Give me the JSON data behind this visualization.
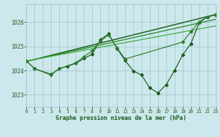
{
  "title": "Graphe pression niveau de la mer (hPa)",
  "bg_color": "#cde8ec",
  "grid_color": "#9ec8cc",
  "line_color_dark": "#1a5c1a",
  "xlim": [
    0,
    23
  ],
  "ylim": [
    1022.5,
    1026.75
  ],
  "xticks": [
    0,
    1,
    2,
    3,
    4,
    5,
    6,
    7,
    8,
    9,
    10,
    11,
    12,
    13,
    14,
    15,
    16,
    17,
    18,
    19,
    20,
    21,
    22,
    23
  ],
  "yticks": [
    1023,
    1024,
    1025,
    1026
  ],
  "series": [
    {
      "x": [
        0,
        1,
        3,
        4,
        5,
        6,
        7,
        8,
        9,
        10,
        11,
        12,
        13,
        14,
        15,
        16,
        17,
        18,
        19,
        20,
        21,
        22,
        23
      ],
      "y": [
        1024.4,
        1024.08,
        1023.82,
        1024.08,
        1024.18,
        1024.3,
        1024.5,
        1024.68,
        1025.28,
        1025.52,
        1024.92,
        1024.42,
        1023.98,
        1023.82,
        1023.28,
        1023.08,
        1023.42,
        1024.0,
        1024.65,
        1025.12,
        1025.98,
        1026.22,
        1026.3
      ],
      "color": "#1a5c1a",
      "marker": "D",
      "markersize": 2.2,
      "linewidth": 0.9
    },
    {
      "x": [
        0,
        1,
        3,
        4,
        6,
        7,
        8,
        9,
        10,
        11,
        12,
        19,
        20,
        21,
        22,
        23
      ],
      "y": [
        1024.4,
        1024.08,
        1023.85,
        1024.08,
        1024.32,
        1024.58,
        1024.82,
        1025.22,
        1025.48,
        1024.95,
        1024.48,
        1025.18,
        1025.62,
        1026.02,
        1026.22,
        1026.32
      ],
      "color": "#2e7d2e",
      "marker": "D",
      "markersize": 2.2,
      "linewidth": 0.9
    },
    {
      "x": [
        0,
        23
      ],
      "y": [
        1024.38,
        1026.32
      ],
      "color": "#1a5c1a",
      "marker": null,
      "linewidth": 1.1
    },
    {
      "x": [
        0,
        23
      ],
      "y": [
        1024.38,
        1026.12
      ],
      "color": "#2e8b2e",
      "marker": null,
      "linewidth": 1.0
    },
    {
      "x": [
        0,
        23
      ],
      "y": [
        1024.4,
        1025.85
      ],
      "color": "#3aaa3a",
      "marker": null,
      "linewidth": 0.9
    }
  ]
}
